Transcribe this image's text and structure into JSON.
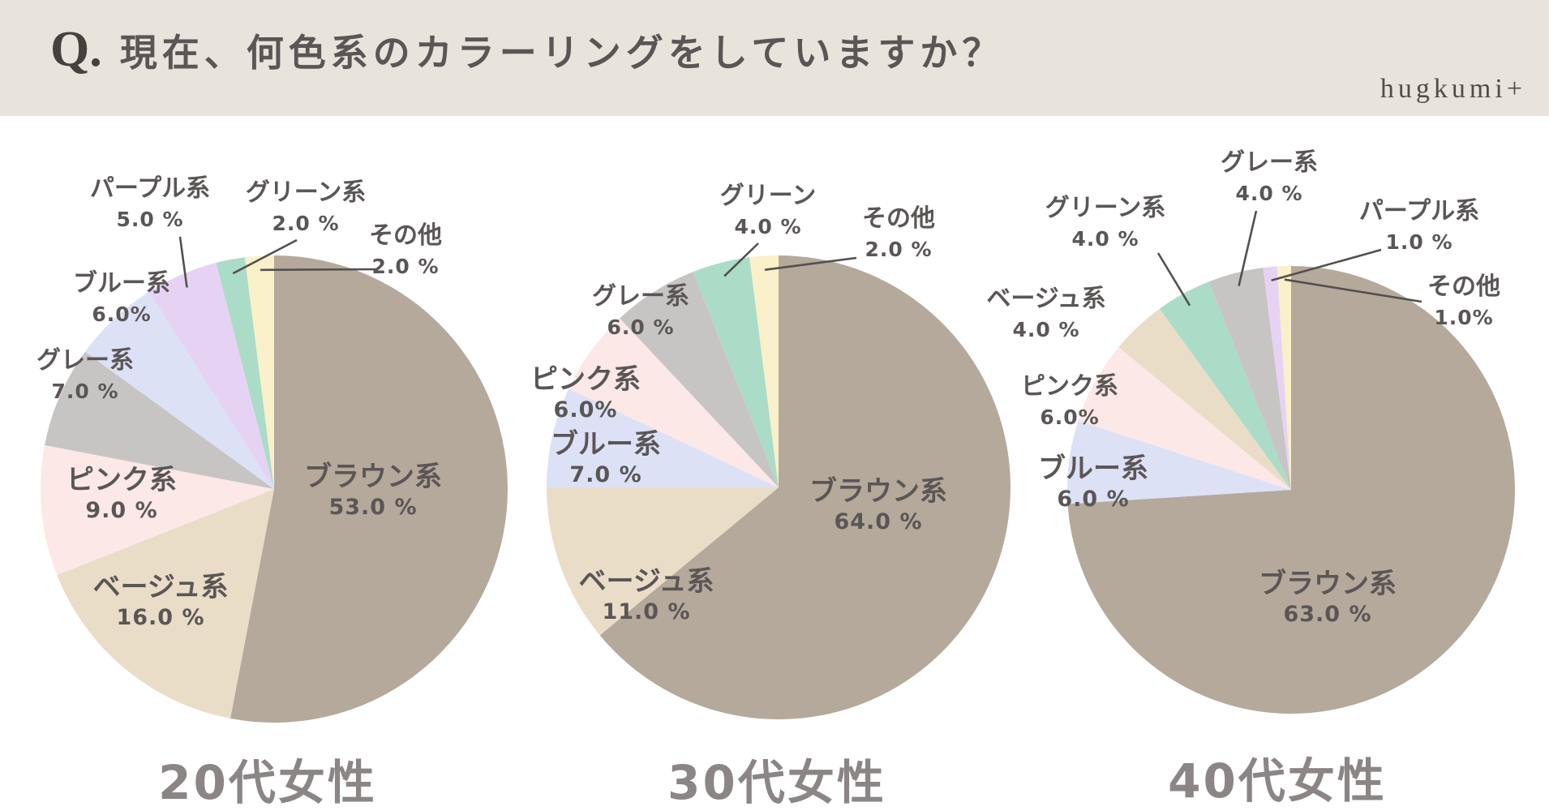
{
  "header": {
    "q_prefix": "Q.",
    "title": "現在、何色系のカラーリングをしていますか？",
    "logo": "hugkumi+"
  },
  "colors": {
    "header_bg": "#e8e4db",
    "label_text": "#5b5656",
    "leader_line": "#54504f",
    "caption_text": "#8b8585",
    "brown": "#b4a99b",
    "beige": "#eaddc8",
    "pink": "#fce8e7",
    "gray": "#c7c5c3",
    "blue": "#dce1f6",
    "purple": "#e6d3f4",
    "green": "#abdcc7",
    "other": "#faf0c9"
  },
  "chart_data": [
    {
      "type": "pie",
      "title": "20代女性",
      "slices": [
        {
          "key": "brown",
          "label": "ブラウン系",
          "value": 53.0,
          "pct_label": "53.0 %"
        },
        {
          "key": "beige",
          "label": "ベージュ系",
          "value": 16.0,
          "pct_label": "16.0 %"
        },
        {
          "key": "pink",
          "label": "ピンク系",
          "value": 9.0,
          "pct_label": "9.0 %"
        },
        {
          "key": "gray",
          "label": "グレー系",
          "value": 7.0,
          "pct_label": "7.0 %"
        },
        {
          "key": "blue",
          "label": "ブルー系",
          "value": 6.0,
          "pct_label": "6.0%"
        },
        {
          "key": "purple",
          "label": "パープル系",
          "value": 5.0,
          "pct_label": "5.0 %"
        },
        {
          "key": "green",
          "label": "グリーン系",
          "value": 2.0,
          "pct_label": "2.0 %"
        },
        {
          "key": "other",
          "label": "その他",
          "value": 2.0,
          "pct_label": "2.0 %"
        }
      ]
    },
    {
      "type": "pie",
      "title": "30代女性",
      "slices": [
        {
          "key": "brown",
          "label": "ブラウン系",
          "value": 64.0,
          "pct_label": "64.0 %"
        },
        {
          "key": "beige",
          "label": "ベージュ系",
          "value": 11.0,
          "pct_label": "11.0 %"
        },
        {
          "key": "blue",
          "label": "ブルー系",
          "value": 7.0,
          "pct_label": "7.0 %"
        },
        {
          "key": "pink",
          "label": "ピンク系",
          "value": 6.0,
          "pct_label": "6.0%"
        },
        {
          "key": "gray",
          "label": "グレー系",
          "value": 6.0,
          "pct_label": "6.0 %"
        },
        {
          "key": "green",
          "label": "グリーン",
          "value": 4.0,
          "pct_label": "4.0 %"
        },
        {
          "key": "other",
          "label": "その他",
          "value": 2.0,
          "pct_label": "2.0 %"
        }
      ]
    },
    {
      "type": "pie",
      "title": "40代女性",
      "slices": [
        {
          "key": "brown",
          "label": "ブラウン系",
          "value": 63.0,
          "pct_label": "63.0 %"
        },
        {
          "key": "blue",
          "label": "ブルー系",
          "value": 6.0,
          "pct_label": "6.0 %"
        },
        {
          "key": "pink",
          "label": "ピンク系",
          "value": 6.0,
          "pct_label": "6.0%"
        },
        {
          "key": "beige",
          "label": "ベージュ系",
          "value": 4.0,
          "pct_label": "4.0 %"
        },
        {
          "key": "green",
          "label": "グリーン系",
          "value": 4.0,
          "pct_label": "4.0 %"
        },
        {
          "key": "gray",
          "label": "グレー系",
          "value": 4.0,
          "pct_label": "4.0 %"
        },
        {
          "key": "purple",
          "label": "パープル系",
          "value": 1.0,
          "pct_label": "1.0 %"
        },
        {
          "key": "other",
          "label": "その他",
          "value": 1.0,
          "pct_label": "1.0%"
        }
      ]
    }
  ]
}
